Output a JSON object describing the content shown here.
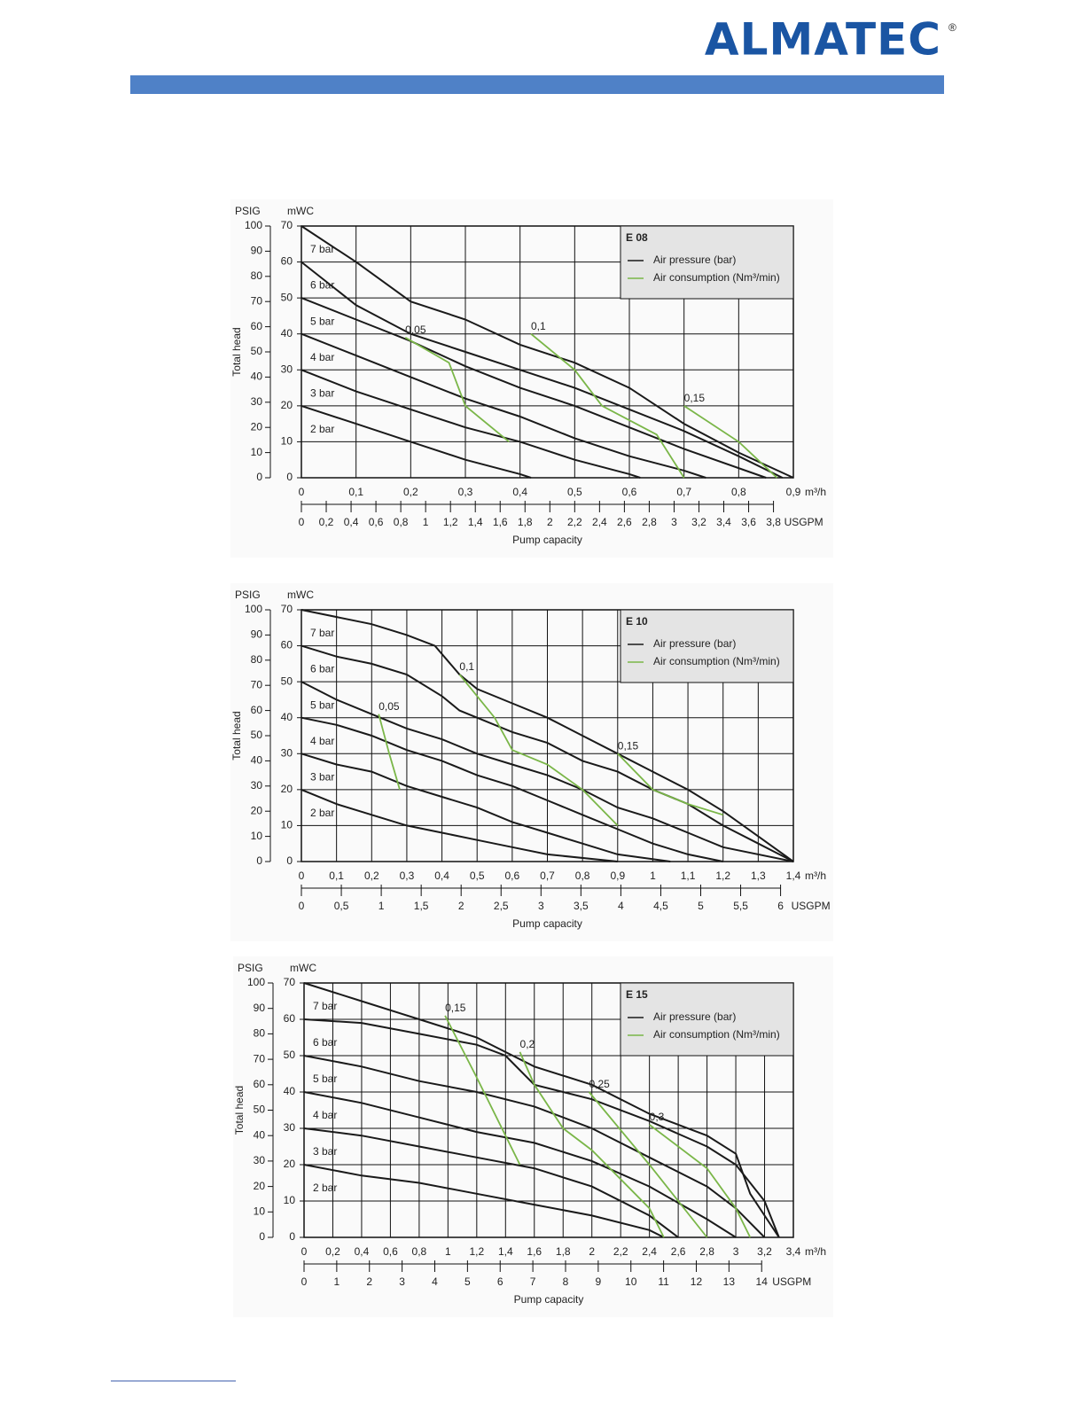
{
  "header": {
    "logo": "ALMATEC",
    "logo_mark": "®"
  },
  "chart_data": [
    {
      "type": "line",
      "title": "E 08",
      "y_unit": "mWC",
      "y2_unit": "PSIG",
      "ylabel": "Total head",
      "xlabel": "Pump capacity",
      "x_unit": "m³/h",
      "x2_unit": "USGPM",
      "legend": [
        {
          "label": "Air pressure (bar)",
          "color": "#1a1a1a"
        },
        {
          "label": "Air consumption (Nm³/min)",
          "color": "#7ab648"
        }
      ],
      "grid": true,
      "xlim": [
        0,
        0.9
      ],
      "xticks": [
        0,
        {
          "value": 0.1,
          "label": "0,1"
        },
        {
          "value": 0.2,
          "label": "0,2"
        },
        {
          "value": 0.3,
          "label": "0,3"
        },
        {
          "value": 0.4,
          "label": "0,4"
        },
        {
          "value": 0.5,
          "label": "0,5"
        },
        {
          "value": 0.6,
          "label": "0,6"
        },
        {
          "value": 0.7,
          "label": "0,7"
        },
        {
          "value": 0.8,
          "label": "0,8"
        },
        {
          "value": 0.9,
          "label": "0,9"
        }
      ],
      "x2lim": [
        0,
        3.96
      ],
      "x2ticks": [
        0,
        {
          "value": 0.2,
          "label": "0,2"
        },
        {
          "value": 0.4,
          "label": "0,4"
        },
        {
          "value": 0.6,
          "label": "0,6"
        },
        {
          "value": 0.8,
          "label": "0,8"
        },
        1,
        {
          "value": 1.2,
          "label": "1,2"
        },
        {
          "value": 1.4,
          "label": "1,4"
        },
        {
          "value": 1.6,
          "label": "1,6"
        },
        {
          "value": 1.8,
          "label": "1,8"
        },
        2,
        {
          "value": 2.2,
          "label": "2,2"
        },
        {
          "value": 2.4,
          "label": "2,4"
        },
        {
          "value": 2.6,
          "label": "2,6"
        },
        {
          "value": 2.8,
          "label": "2,8"
        },
        3,
        {
          "value": 3.2,
          "label": "3,2"
        },
        {
          "value": 3.4,
          "label": "3,4"
        },
        {
          "value": 3.6,
          "label": "3,6"
        },
        {
          "value": 3.8,
          "label": "3,8"
        }
      ],
      "ylim": [
        0,
        70
      ],
      "yticks": [
        0,
        10,
        20,
        30,
        40,
        50,
        60,
        70
      ],
      "y2lim": [
        0,
        100
      ],
      "y2ticks": [
        0,
        10,
        20,
        30,
        40,
        50,
        60,
        70,
        80,
        90,
        100
      ],
      "series": [
        {
          "name": "7 bar",
          "color": "#1a1a1a",
          "x": [
            0,
            0.1,
            0.2,
            0.3,
            0.4,
            0.5,
            0.6,
            0.7,
            0.8,
            0.9
          ],
          "values": [
            70,
            60,
            49,
            44,
            37,
            32,
            25,
            15,
            7,
            0
          ]
        },
        {
          "name": "6 bar",
          "color": "#1a1a1a",
          "x": [
            0,
            0.1,
            0.2,
            0.3,
            0.4,
            0.5,
            0.6,
            0.7,
            0.8,
            0.88
          ],
          "values": [
            60,
            48,
            40,
            35,
            30,
            25,
            19,
            13,
            6,
            0
          ]
        },
        {
          "name": "5 bar",
          "color": "#1a1a1a",
          "x": [
            0,
            0.1,
            0.2,
            0.3,
            0.4,
            0.5,
            0.6,
            0.7,
            0.85
          ],
          "values": [
            50,
            44,
            38,
            31,
            25,
            20,
            14,
            8,
            0
          ]
        },
        {
          "name": "4 bar",
          "color": "#1a1a1a",
          "x": [
            0,
            0.1,
            0.2,
            0.3,
            0.4,
            0.5,
            0.6,
            0.7,
            0.74
          ],
          "values": [
            40,
            34,
            28,
            22,
            17,
            11,
            6,
            2,
            0
          ]
        },
        {
          "name": "3 bar",
          "color": "#1a1a1a",
          "x": [
            0,
            0.1,
            0.2,
            0.3,
            0.4,
            0.5,
            0.6,
            0.62
          ],
          "values": [
            30,
            24,
            19,
            14,
            10,
            5,
            1,
            0
          ]
        },
        {
          "name": "2 bar",
          "color": "#1a1a1a",
          "x": [
            0,
            0.1,
            0.2,
            0.3,
            0.4,
            0.42
          ],
          "values": [
            20,
            15,
            10,
            5,
            1,
            0
          ]
        },
        {
          "name": "0,05",
          "color": "#7ab648",
          "x": [
            0.19,
            0.27,
            0.3,
            0.38
          ],
          "values": [
            39,
            32,
            20,
            10
          ]
        },
        {
          "name": "0,1",
          "color": "#7ab648",
          "x": [
            0.42,
            0.5,
            0.55,
            0.65,
            0.7
          ],
          "values": [
            40,
            30,
            20,
            12,
            0
          ]
        },
        {
          "name": "0,15",
          "color": "#7ab648",
          "x": [
            0.7,
            0.8,
            0.87
          ],
          "values": [
            20,
            10,
            0
          ]
        }
      ]
    },
    {
      "type": "line",
      "title": "E 10",
      "y_unit": "mWC",
      "y2_unit": "PSIG",
      "ylabel": "Total head",
      "xlabel": "Pump capacity",
      "x_unit": "m³/h",
      "x2_unit": "USGPM",
      "legend": [
        {
          "label": "Air pressure (bar)",
          "color": "#1a1a1a"
        },
        {
          "label": "Air consumption (Nm³/min)",
          "color": "#7ab648"
        }
      ],
      "grid": true,
      "xlim": [
        0,
        1.4
      ],
      "xticks": [
        0,
        {
          "value": 0.1,
          "label": "0,1"
        },
        {
          "value": 0.2,
          "label": "0,2"
        },
        {
          "value": 0.3,
          "label": "0,3"
        },
        {
          "value": 0.4,
          "label": "0,4"
        },
        {
          "value": 0.5,
          "label": "0,5"
        },
        {
          "value": 0.6,
          "label": "0,6"
        },
        {
          "value": 0.7,
          "label": "0,7"
        },
        {
          "value": 0.8,
          "label": "0,8"
        },
        {
          "value": 0.9,
          "label": "0,9"
        },
        1,
        {
          "value": 1.1,
          "label": "1,1"
        },
        {
          "value": 1.2,
          "label": "1,2"
        },
        {
          "value": 1.3,
          "label": "1,3"
        },
        {
          "value": 1.4,
          "label": "1,4"
        }
      ],
      "x2lim": [
        0,
        6.16
      ],
      "x2ticks": [
        0,
        {
          "value": 0.5,
          "label": "0,5"
        },
        1,
        {
          "value": 1.5,
          "label": "1,5"
        },
        2,
        {
          "value": 2.5,
          "label": "2,5"
        },
        3,
        {
          "value": 3.5,
          "label": "3,5"
        },
        4,
        {
          "value": 4.5,
          "label": "4,5"
        },
        5,
        {
          "value": 5.5,
          "label": "5,5"
        },
        6
      ],
      "ylim": [
        0,
        70
      ],
      "yticks": [
        0,
        10,
        20,
        30,
        40,
        50,
        60,
        70
      ],
      "y2lim": [
        0,
        100
      ],
      "y2ticks": [
        0,
        10,
        20,
        30,
        40,
        50,
        60,
        70,
        80,
        90,
        100
      ],
      "series": [
        {
          "name": "7 bar",
          "color": "#1a1a1a",
          "x": [
            0,
            0.2,
            0.3,
            0.38,
            0.45,
            0.5,
            0.6,
            0.7,
            0.8,
            0.9,
            1,
            1.1,
            1.2,
            1.3,
            1.4
          ],
          "values": [
            70,
            66,
            63,
            60,
            52,
            48,
            44,
            40,
            35,
            30,
            25,
            20,
            14,
            7,
            0
          ]
        },
        {
          "name": "6 bar",
          "color": "#1a1a1a",
          "x": [
            0,
            0.1,
            0.2,
            0.3,
            0.4,
            0.45,
            0.5,
            0.6,
            0.7,
            0.8,
            0.9,
            1,
            1.1,
            1.2,
            1.3,
            1.4
          ],
          "values": [
            60,
            57,
            55,
            52,
            46,
            42,
            40,
            36,
            33,
            28,
            25,
            20,
            16,
            10,
            5,
            0
          ]
        },
        {
          "name": "5 bar",
          "color": "#1a1a1a",
          "x": [
            0,
            0.1,
            0.2,
            0.3,
            0.4,
            0.5,
            0.6,
            0.7,
            0.8,
            0.9,
            1,
            1.1,
            1.2,
            1.4
          ],
          "values": [
            50,
            45,
            41,
            37,
            34,
            30,
            27,
            24,
            20,
            15,
            12,
            8,
            4,
            0
          ]
        },
        {
          "name": "4 bar",
          "color": "#1a1a1a",
          "x": [
            0,
            0.1,
            0.2,
            0.3,
            0.4,
            0.5,
            0.6,
            0.7,
            0.8,
            0.9,
            1,
            1.1,
            1.2
          ],
          "values": [
            40,
            38,
            35,
            31,
            28,
            24,
            21,
            17,
            13,
            9,
            5,
            2,
            0
          ]
        },
        {
          "name": "3 bar",
          "color": "#1a1a1a",
          "x": [
            0,
            0.1,
            0.2,
            0.3,
            0.4,
            0.5,
            0.6,
            0.7,
            0.8,
            0.9,
            1.05
          ],
          "values": [
            30,
            27,
            25,
            21,
            18,
            15,
            11,
            8,
            5,
            2,
            0
          ]
        },
        {
          "name": "2 bar",
          "color": "#1a1a1a",
          "x": [
            0,
            0.1,
            0.2,
            0.3,
            0.4,
            0.5,
            0.6,
            0.7,
            0.9
          ],
          "values": [
            20,
            16,
            13,
            10,
            8,
            6,
            4,
            2,
            0
          ]
        },
        {
          "name": "0,05",
          "color": "#7ab648",
          "x": [
            0.22,
            0.25,
            0.28
          ],
          "values": [
            41,
            30,
            20
          ]
        },
        {
          "name": "0,1",
          "color": "#7ab648",
          "x": [
            0.45,
            0.55,
            0.6,
            0.7,
            0.8,
            0.9
          ],
          "values": [
            52,
            40,
            31,
            27,
            20,
            10
          ]
        },
        {
          "name": "0,15",
          "color": "#7ab648",
          "x": [
            0.9,
            1,
            1.1,
            1.2
          ],
          "values": [
            30,
            20,
            16,
            13
          ]
        }
      ]
    },
    {
      "type": "line",
      "title": "E 15",
      "y_unit": "mWC",
      "y2_unit": "PSIG",
      "ylabel": "Total head",
      "xlabel": "Pump capacity",
      "x_unit": "m³/h",
      "x2_unit": "USGPM",
      "legend": [
        {
          "label": "Air pressure (bar)",
          "color": "#1a1a1a"
        },
        {
          "label": "Air consumption (Nm³/min)",
          "color": "#7ab648"
        }
      ],
      "grid": true,
      "xlim": [
        0,
        3.4
      ],
      "xticks": [
        0,
        {
          "value": 0.2,
          "label": "0,2"
        },
        {
          "value": 0.4,
          "label": "0,4"
        },
        {
          "value": 0.6,
          "label": "0,6"
        },
        {
          "value": 0.8,
          "label": "0,8"
        },
        1,
        {
          "value": 1.2,
          "label": "1,2"
        },
        {
          "value": 1.4,
          "label": "1,4"
        },
        {
          "value": 1.6,
          "label": "1,6"
        },
        {
          "value": 1.8,
          "label": "1,8"
        },
        2,
        {
          "value": 2.2,
          "label": "2,2"
        },
        {
          "value": 2.4,
          "label": "2,4"
        },
        {
          "value": 2.6,
          "label": "2,6"
        },
        {
          "value": 2.8,
          "label": "2,8"
        },
        3,
        {
          "value": 3.2,
          "label": "3,2"
        },
        {
          "value": 3.4,
          "label": "3,4"
        }
      ],
      "x2lim": [
        0,
        14.97
      ],
      "x2ticks": [
        0,
        1,
        2,
        3,
        4,
        5,
        6,
        7,
        8,
        9,
        10,
        11,
        12,
        13,
        14
      ],
      "ylim": [
        0,
        70
      ],
      "yticks": [
        0,
        10,
        20,
        30,
        40,
        50,
        60,
        70
      ],
      "y2lim": [
        0,
        100
      ],
      "y2ticks": [
        0,
        10,
        20,
        30,
        40,
        50,
        60,
        70,
        80,
        90,
        100
      ],
      "series": [
        {
          "name": "7 bar",
          "color": "#1a1a1a",
          "x": [
            0,
            0.4,
            0.8,
            1.2,
            1.6,
            2,
            2.4,
            2.8,
            3,
            3.1,
            3.3
          ],
          "values": [
            70,
            65,
            60,
            55,
            47,
            42,
            34,
            28,
            23,
            12,
            0
          ]
        },
        {
          "name": "6 bar",
          "color": "#1a1a1a",
          "x": [
            0,
            0.4,
            0.8,
            1.2,
            1.4,
            1.6,
            2,
            2.4,
            2.8,
            3,
            3.2,
            3.3
          ],
          "values": [
            60,
            59,
            56,
            53,
            50,
            42,
            38,
            32,
            25,
            20,
            10,
            0
          ]
        },
        {
          "name": "5 bar",
          "color": "#1a1a1a",
          "x": [
            0,
            0.4,
            0.8,
            1.2,
            1.6,
            2,
            2.4,
            2.8,
            3,
            3.2
          ],
          "values": [
            50,
            47,
            43,
            40,
            36,
            30,
            22,
            14,
            8,
            0
          ]
        },
        {
          "name": "4 bar",
          "color": "#1a1a1a",
          "x": [
            0,
            0.4,
            0.8,
            1.2,
            1.6,
            2,
            2.4,
            2.8,
            3
          ],
          "values": [
            40,
            37,
            33,
            29,
            26,
            21,
            14,
            5,
            0
          ]
        },
        {
          "name": "3 bar",
          "color": "#1a1a1a",
          "x": [
            0,
            0.4,
            0.8,
            1.2,
            1.6,
            2,
            2.4,
            2.6
          ],
          "values": [
            30,
            28,
            25,
            22,
            19,
            14,
            6,
            0
          ]
        },
        {
          "name": "2 bar",
          "color": "#1a1a1a",
          "x": [
            0,
            0.4,
            0.8,
            1.2,
            1.6,
            2,
            2.4,
            2.5
          ],
          "values": [
            20,
            17,
            15,
            12,
            9,
            6,
            2,
            0
          ]
        },
        {
          "name": "0,15",
          "color": "#7ab648",
          "x": [
            0.98,
            1.2,
            1.5
          ],
          "values": [
            61,
            44,
            20
          ]
        },
        {
          "name": "0,2",
          "color": "#7ab648",
          "x": [
            1.5,
            1.6,
            1.8,
            2,
            2.4,
            2.5
          ],
          "values": [
            51,
            42,
            30,
            24,
            8,
            0
          ]
        },
        {
          "name": "0,25",
          "color": "#7ab648",
          "x": [
            1.98,
            2.4,
            2.6,
            2.8
          ],
          "values": [
            40,
            20,
            10,
            0
          ]
        },
        {
          "name": "0,3",
          "color": "#7ab648",
          "x": [
            2.4,
            2.8,
            3,
            3.1
          ],
          "values": [
            31,
            19,
            8,
            0
          ]
        }
      ]
    }
  ]
}
